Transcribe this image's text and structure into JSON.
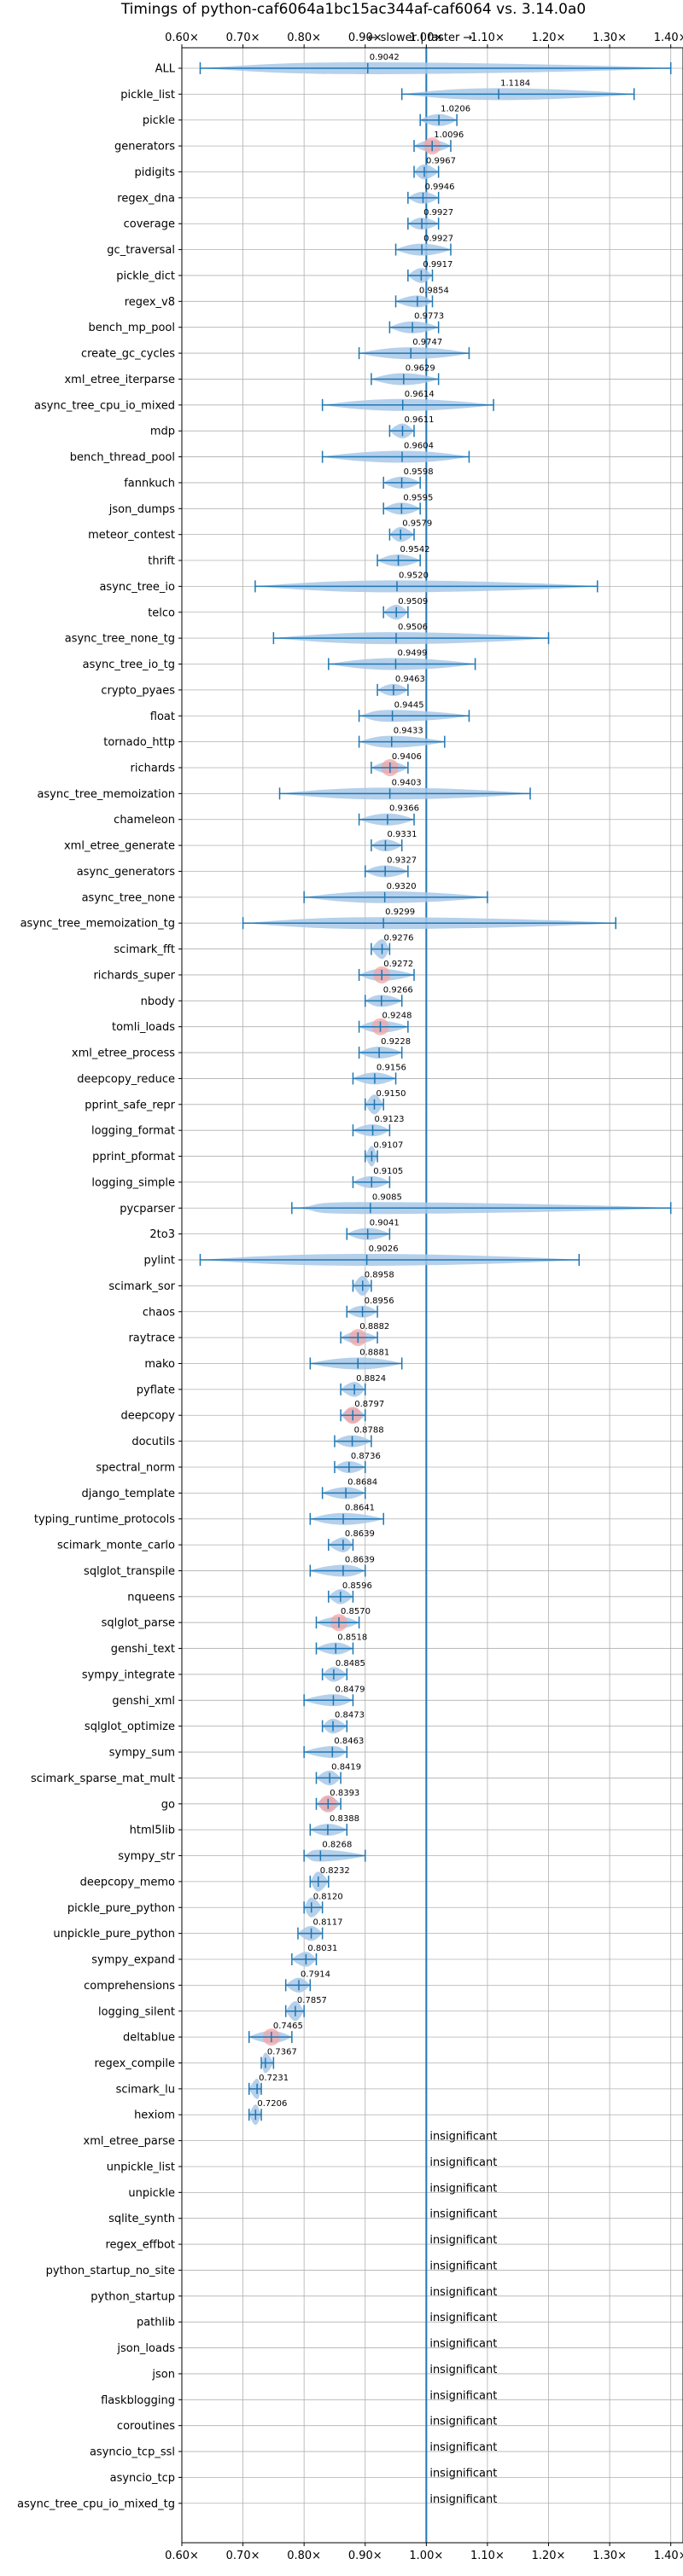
{
  "chart_data": {
    "type": "violin",
    "title": "Timings of python-caf6064a1bc15ac344af-caf6064 vs. 3.14.0a0",
    "subtitle": "← slower  |  faster →",
    "xlim": [
      0.6,
      1.42
    ],
    "x_ticks": [
      "0.60×",
      "0.70×",
      "0.80×",
      "0.90×",
      "1.00×",
      "1.10×",
      "1.20×",
      "1.30×",
      "1.40×"
    ],
    "x_tick_values": [
      0.6,
      0.7,
      0.8,
      0.9,
      1.0,
      1.1,
      1.2,
      1.3,
      1.4
    ],
    "grid": true,
    "reference_line": 1.0,
    "insignificant_label": "insignificant",
    "colors": {
      "violin": "#a8c8e8",
      "whisker": "#1f77b4",
      "highlight": "#f4a6a6",
      "refline": "#1f77b4"
    },
    "benchmarks": [
      {
        "name": "ALL",
        "mean": 0.9042,
        "min": 0.63,
        "max": 1.4
      },
      {
        "name": "pickle_list",
        "mean": 1.1184,
        "min": 0.96,
        "max": 1.34
      },
      {
        "name": "pickle",
        "mean": 1.0206,
        "min": 0.99,
        "max": 1.05
      },
      {
        "name": "generators",
        "mean": 1.0096,
        "min": 0.98,
        "max": 1.04,
        "highlight": true
      },
      {
        "name": "pidigits",
        "mean": 0.9967,
        "min": 0.98,
        "max": 1.02
      },
      {
        "name": "regex_dna",
        "mean": 0.9946,
        "min": 0.97,
        "max": 1.02
      },
      {
        "name": "coverage",
        "mean": 0.9927,
        "min": 0.97,
        "max": 1.02
      },
      {
        "name": "gc_traversal",
        "mean": 0.9927,
        "min": 0.95,
        "max": 1.04
      },
      {
        "name": "pickle_dict",
        "mean": 0.9917,
        "min": 0.97,
        "max": 1.01
      },
      {
        "name": "regex_v8",
        "mean": 0.9854,
        "min": 0.95,
        "max": 1.01
      },
      {
        "name": "bench_mp_pool",
        "mean": 0.9773,
        "min": 0.94,
        "max": 1.02
      },
      {
        "name": "create_gc_cycles",
        "mean": 0.9747,
        "min": 0.89,
        "max": 1.07
      },
      {
        "name": "xml_etree_iterparse",
        "mean": 0.9629,
        "min": 0.91,
        "max": 1.02
      },
      {
        "name": "async_tree_cpu_io_mixed",
        "mean": 0.9614,
        "min": 0.83,
        "max": 1.11
      },
      {
        "name": "mdp",
        "mean": 0.9611,
        "min": 0.94,
        "max": 0.98
      },
      {
        "name": "bench_thread_pool",
        "mean": 0.9604,
        "min": 0.83,
        "max": 1.07
      },
      {
        "name": "fannkuch",
        "mean": 0.9598,
        "min": 0.93,
        "max": 0.99
      },
      {
        "name": "json_dumps",
        "mean": 0.9595,
        "min": 0.93,
        "max": 0.99
      },
      {
        "name": "meteor_contest",
        "mean": 0.9579,
        "min": 0.94,
        "max": 0.98
      },
      {
        "name": "thrift",
        "mean": 0.9542,
        "min": 0.92,
        "max": 0.99
      },
      {
        "name": "async_tree_io",
        "mean": 0.952,
        "min": 0.72,
        "max": 1.28
      },
      {
        "name": "telco",
        "mean": 0.9509,
        "min": 0.93,
        "max": 0.97
      },
      {
        "name": "async_tree_none_tg",
        "mean": 0.9506,
        "min": 0.75,
        "max": 1.2
      },
      {
        "name": "async_tree_io_tg",
        "mean": 0.9499,
        "min": 0.84,
        "max": 1.08
      },
      {
        "name": "crypto_pyaes",
        "mean": 0.9463,
        "min": 0.92,
        "max": 0.97
      },
      {
        "name": "float",
        "mean": 0.9445,
        "min": 0.89,
        "max": 1.07
      },
      {
        "name": "tornado_http",
        "mean": 0.9433,
        "min": 0.89,
        "max": 1.03
      },
      {
        "name": "richards",
        "mean": 0.9406,
        "min": 0.91,
        "max": 0.97,
        "highlight": true
      },
      {
        "name": "async_tree_memoization",
        "mean": 0.9403,
        "min": 0.76,
        "max": 1.17
      },
      {
        "name": "chameleon",
        "mean": 0.9366,
        "min": 0.89,
        "max": 0.98
      },
      {
        "name": "xml_etree_generate",
        "mean": 0.9331,
        "min": 0.91,
        "max": 0.96
      },
      {
        "name": "async_generators",
        "mean": 0.9327,
        "min": 0.9,
        "max": 0.97
      },
      {
        "name": "async_tree_none",
        "mean": 0.932,
        "min": 0.8,
        "max": 1.1
      },
      {
        "name": "async_tree_memoization_tg",
        "mean": 0.9299,
        "min": 0.7,
        "max": 1.31
      },
      {
        "name": "scimark_fft",
        "mean": 0.9276,
        "min": 0.91,
        "max": 0.94
      },
      {
        "name": "richards_super",
        "mean": 0.9272,
        "min": 0.89,
        "max": 0.98,
        "highlight": true
      },
      {
        "name": "nbody",
        "mean": 0.9266,
        "min": 0.9,
        "max": 0.96
      },
      {
        "name": "tomli_loads",
        "mean": 0.9248,
        "min": 0.89,
        "max": 0.97,
        "highlight": true
      },
      {
        "name": "xml_etree_process",
        "mean": 0.9228,
        "min": 0.89,
        "max": 0.96
      },
      {
        "name": "deepcopy_reduce",
        "mean": 0.9156,
        "min": 0.88,
        "max": 0.95
      },
      {
        "name": "pprint_safe_repr",
        "mean": 0.915,
        "min": 0.9,
        "max": 0.93
      },
      {
        "name": "logging_format",
        "mean": 0.9123,
        "min": 0.88,
        "max": 0.94
      },
      {
        "name": "pprint_pformat",
        "mean": 0.9107,
        "min": 0.9,
        "max": 0.92
      },
      {
        "name": "logging_simple",
        "mean": 0.9105,
        "min": 0.88,
        "max": 0.94
      },
      {
        "name": "pycparser",
        "mean": 0.9085,
        "min": 0.78,
        "max": 1.4
      },
      {
        "name": "2to3",
        "mean": 0.9041,
        "min": 0.87,
        "max": 0.94
      },
      {
        "name": "pylint",
        "mean": 0.9026,
        "min": 0.63,
        "max": 1.25
      },
      {
        "name": "scimark_sor",
        "mean": 0.8958,
        "min": 0.88,
        "max": 0.91
      },
      {
        "name": "chaos",
        "mean": 0.8956,
        "min": 0.87,
        "max": 0.92
      },
      {
        "name": "raytrace",
        "mean": 0.8882,
        "min": 0.86,
        "max": 0.92,
        "highlight": true
      },
      {
        "name": "mako",
        "mean": 0.8881,
        "min": 0.81,
        "max": 0.96
      },
      {
        "name": "pyflate",
        "mean": 0.8824,
        "min": 0.86,
        "max": 0.9
      },
      {
        "name": "deepcopy",
        "mean": 0.8797,
        "min": 0.86,
        "max": 0.9,
        "highlight": true
      },
      {
        "name": "docutils",
        "mean": 0.8788,
        "min": 0.85,
        "max": 0.91
      },
      {
        "name": "spectral_norm",
        "mean": 0.8736,
        "min": 0.85,
        "max": 0.9
      },
      {
        "name": "django_template",
        "mean": 0.8684,
        "min": 0.83,
        "max": 0.9
      },
      {
        "name": "typing_runtime_protocols",
        "mean": 0.8641,
        "min": 0.81,
        "max": 0.93
      },
      {
        "name": "scimark_monte_carlo",
        "mean": 0.8639,
        "min": 0.84,
        "max": 0.88
      },
      {
        "name": "sqlglot_transpile",
        "mean": 0.8639,
        "min": 0.81,
        "max": 0.9
      },
      {
        "name": "nqueens",
        "mean": 0.8596,
        "min": 0.84,
        "max": 0.88
      },
      {
        "name": "sqlglot_parse",
        "mean": 0.857,
        "min": 0.82,
        "max": 0.89,
        "highlight": true
      },
      {
        "name": "genshi_text",
        "mean": 0.8518,
        "min": 0.82,
        "max": 0.88
      },
      {
        "name": "sympy_integrate",
        "mean": 0.8485,
        "min": 0.83,
        "max": 0.87
      },
      {
        "name": "genshi_xml",
        "mean": 0.8479,
        "min": 0.8,
        "max": 0.88
      },
      {
        "name": "sqlglot_optimize",
        "mean": 0.8473,
        "min": 0.83,
        "max": 0.87
      },
      {
        "name": "sympy_sum",
        "mean": 0.8463,
        "min": 0.8,
        "max": 0.87
      },
      {
        "name": "scimark_sparse_mat_mult",
        "mean": 0.8419,
        "min": 0.82,
        "max": 0.86
      },
      {
        "name": "go",
        "mean": 0.8393,
        "min": 0.82,
        "max": 0.86,
        "highlight": true
      },
      {
        "name": "html5lib",
        "mean": 0.8388,
        "min": 0.81,
        "max": 0.87
      },
      {
        "name": "sympy_str",
        "mean": 0.8268,
        "min": 0.8,
        "max": 0.9
      },
      {
        "name": "deepcopy_memo",
        "mean": 0.8232,
        "min": 0.81,
        "max": 0.84
      },
      {
        "name": "pickle_pure_python",
        "mean": 0.812,
        "min": 0.8,
        "max": 0.83
      },
      {
        "name": "unpickle_pure_python",
        "mean": 0.8117,
        "min": 0.79,
        "max": 0.83
      },
      {
        "name": "sympy_expand",
        "mean": 0.8031,
        "min": 0.78,
        "max": 0.82
      },
      {
        "name": "comprehensions",
        "mean": 0.7914,
        "min": 0.77,
        "max": 0.81
      },
      {
        "name": "logging_silent",
        "mean": 0.7857,
        "min": 0.77,
        "max": 0.8
      },
      {
        "name": "deltablue",
        "mean": 0.7465,
        "min": 0.71,
        "max": 0.78,
        "highlight": true
      },
      {
        "name": "regex_compile",
        "mean": 0.7367,
        "min": 0.73,
        "max": 0.75
      },
      {
        "name": "scimark_lu",
        "mean": 0.7231,
        "min": 0.71,
        "max": 0.73
      },
      {
        "name": "hexiom",
        "mean": 0.7206,
        "min": 0.71,
        "max": 0.73
      },
      {
        "name": "xml_etree_parse",
        "insignificant": true
      },
      {
        "name": "unpickle_list",
        "insignificant": true
      },
      {
        "name": "unpickle",
        "insignificant": true
      },
      {
        "name": "sqlite_synth",
        "insignificant": true
      },
      {
        "name": "regex_effbot",
        "insignificant": true
      },
      {
        "name": "python_startup_no_site",
        "insignificant": true
      },
      {
        "name": "python_startup",
        "insignificant": true
      },
      {
        "name": "pathlib",
        "insignificant": true
      },
      {
        "name": "json_loads",
        "insignificant": true
      },
      {
        "name": "json",
        "insignificant": true
      },
      {
        "name": "flaskblogging",
        "insignificant": true
      },
      {
        "name": "coroutines",
        "insignificant": true
      },
      {
        "name": "asyncio_tcp_ssl",
        "insignificant": true
      },
      {
        "name": "asyncio_tcp",
        "insignificant": true
      },
      {
        "name": "async_tree_cpu_io_mixed_tg",
        "insignificant": true
      }
    ]
  }
}
